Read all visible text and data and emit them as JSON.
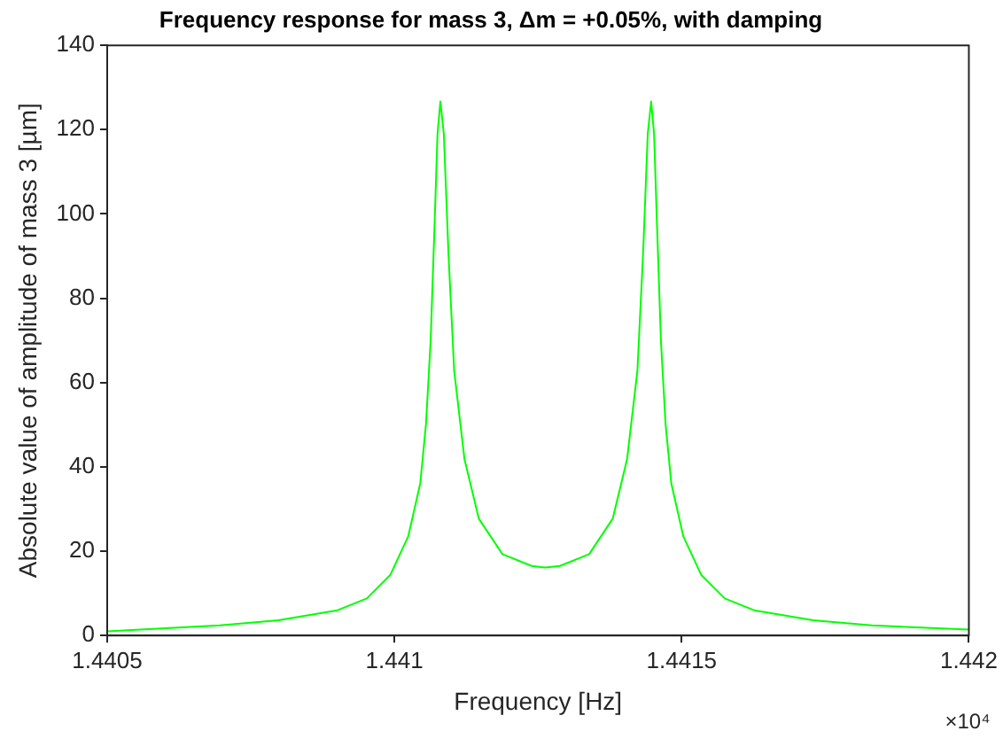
{
  "chart_data": {
    "type": "line",
    "title": "Frequency response for mass 3, Δm = +0.05%, with damping",
    "xlabel": "Frequency [Hz]",
    "ylabel": "Absolute value of amplitude of mass 3 [µm]",
    "annotations": [
      "×10⁴"
    ],
    "x": [
      1.4405,
      1.440696,
      1.440798,
      1.440901,
      1.440952,
      1.440993,
      1.441024,
      1.441045,
      1.441055,
      1.441063,
      1.44107,
      1.441075,
      1.44108,
      1.441086,
      1.441094,
      1.441104,
      1.441122,
      1.441147,
      1.441188,
      1.441239,
      1.441262,
      1.441288,
      1.441339,
      1.44138,
      1.441405,
      1.441423,
      1.441433,
      1.441441,
      1.441447,
      1.441452,
      1.441457,
      1.441464,
      1.441472,
      1.441482,
      1.441503,
      1.441534,
      1.441575,
      1.441626,
      1.441729,
      1.441831,
      1.442
    ],
    "series": [
      {
        "color": "#00ff00",
        "values": [
          1.0,
          2.4,
          3.6,
          6.0,
          8.8,
          14.4,
          23.5,
          36.1,
          50.2,
          69.8,
          97.9,
          119,
          126.7,
          119,
          90.9,
          62.8,
          41.8,
          27.7,
          19.3,
          16.5,
          16.1,
          16.5,
          19.3,
          27.7,
          41.8,
          62.8,
          90.9,
          119,
          126.7,
          119,
          97.9,
          69.8,
          50.2,
          36.1,
          23.5,
          14.4,
          8.8,
          6.0,
          3.6,
          2.4,
          1.4
        ]
      }
    ],
    "xlim": [
      1.4405,
      1.442
    ],
    "xticks": [
      1.4405,
      1.441,
      1.4415,
      1.442
    ],
    "ylim": [
      0,
      140
    ],
    "yticks": [
      0,
      20,
      40,
      60,
      80,
      100,
      120,
      140
    ],
    "grid": false,
    "legend": false,
    "marker": "none",
    "line_style": "solid"
  }
}
